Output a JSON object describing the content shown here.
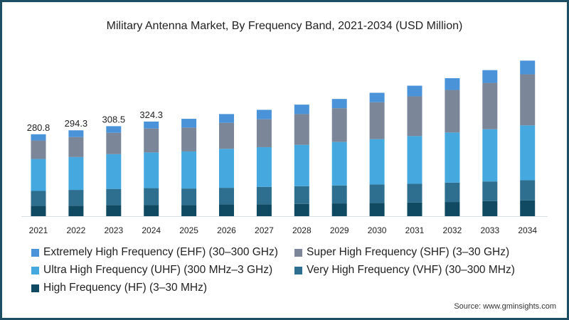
{
  "chart_data": {
    "type": "bar",
    "stacked": true,
    "title": "Military Antenna Market, By Frequency Band, 2021-2034 (USD Million)",
    "xlabel": "",
    "ylabel": "",
    "ylim": [
      0,
      580
    ],
    "grid": false,
    "legend_position": "bottom",
    "categories": [
      "2021",
      "2022",
      "2023",
      "2024",
      "2025",
      "2026",
      "2027",
      "2028",
      "2029",
      "2030",
      "2031",
      "2032",
      "2033",
      "2034"
    ],
    "series": [
      {
        "name": "High Frequency (HF) (3–30 MHz)",
        "color": "#0f4a62",
        "values": [
          35.7,
          36.0,
          38.2,
          38.6,
          38.0,
          40.5,
          40.5,
          42.0,
          43.7,
          45.4,
          47.0,
          48.6,
          51.8,
          54.3
        ]
      },
      {
        "name": "Very High Frequency (VHF) (30–300 MHz)",
        "color": "#2e6e8e",
        "values": [
          50.8,
          54.0,
          55.2,
          57.5,
          56.7,
          56.7,
          60.0,
          60.8,
          61.6,
          63.2,
          64.0,
          66.4,
          67.2,
          68.9
        ]
      },
      {
        "name": "Ultra High Frequency (UHF) (300 MHz–3 GHz)",
        "color": "#45a9df",
        "values": [
          109.5,
          112.7,
          119.3,
          122.3,
          127.2,
          133.7,
          136.0,
          141.8,
          149.0,
          155.5,
          163.6,
          171.7,
          179.0,
          187.9
        ]
      },
      {
        "name": "Super High Frequency (SHF) (3–30 GHz)",
        "color": "#7b8798",
        "values": [
          63.4,
          68.4,
          73.1,
          82.1,
          81.8,
          89.1,
          95.6,
          105.3,
          115.8,
          126.4,
          136.1,
          145.8,
          158.8,
          175.0
        ]
      },
      {
        "name": "Extremely High Frequency (EHF) (30–300 GHz)",
        "color": "#4b93d8",
        "values": [
          21.4,
          23.2,
          22.7,
          23.8,
          30.0,
          30.0,
          32.4,
          32.4,
          31.6,
          32.4,
          36.5,
          40.5,
          43.7,
          47.0
        ]
      }
    ],
    "data_labels": [
      "280.8",
      "294.3",
      "308.5",
      "324.3",
      null,
      null,
      null,
      null,
      null,
      null,
      null,
      null,
      null,
      null
    ],
    "legend_order": [
      4,
      3,
      2,
      1,
      0
    ]
  },
  "source": "Source: www.gminsights.com"
}
